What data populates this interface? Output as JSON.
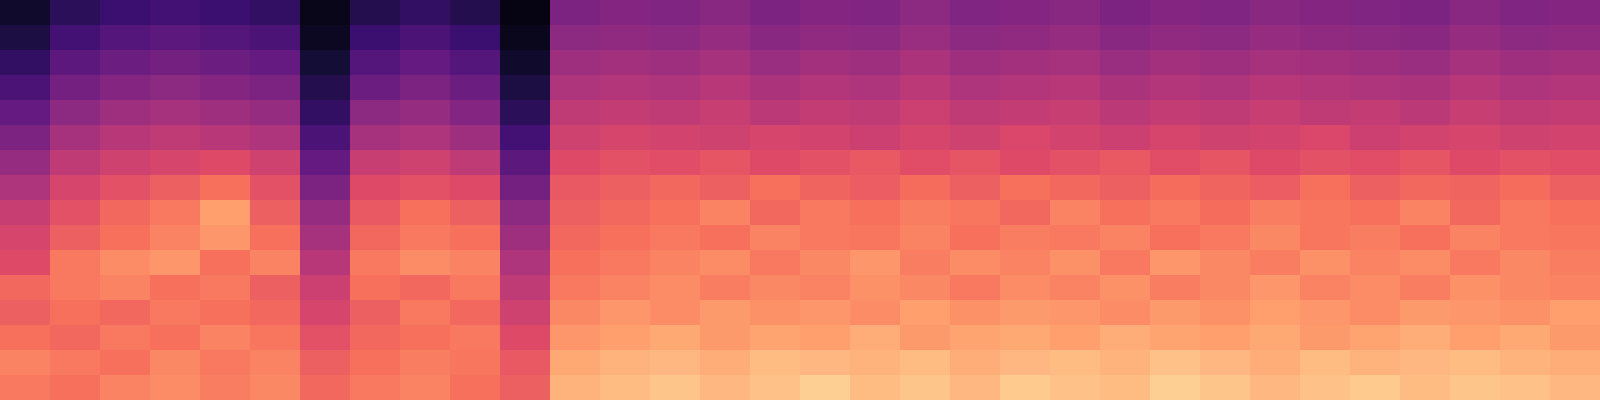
{
  "chart_data": {
    "type": "heatmap",
    "color": "magma",
    "tick_labels": false,
    "zlim": [
      0,
      100
    ],
    "cells": [
      [
        72,
        70,
        74,
        76,
        73,
        75,
        68,
        72,
        74,
        70,
        66,
        84,
        86,
        88,
        85,
        87,
        90,
        86,
        88,
        85,
        89,
        87,
        86,
        90,
        88,
        85,
        87,
        89,
        86,
        88,
        87,
        85
      ],
      [
        74,
        72,
        70,
        75,
        72,
        74,
        66,
        70,
        73,
        71,
        64,
        82,
        84,
        85,
        83,
        86,
        85,
        84,
        86,
        83,
        85,
        86,
        84,
        87,
        85,
        83,
        86,
        84,
        85,
        86,
        84,
        83
      ],
      [
        70,
        68,
        72,
        70,
        74,
        71,
        62,
        68,
        70,
        72,
        60,
        78,
        80,
        82,
        79,
        81,
        80,
        83,
        79,
        81,
        82,
        80,
        83,
        81,
        80,
        82,
        79,
        81,
        83,
        80,
        82,
        79
      ],
      [
        66,
        70,
        68,
        72,
        70,
        68,
        58,
        66,
        72,
        68,
        56,
        75,
        78,
        76,
        79,
        77,
        78,
        76,
        80,
        77,
        79,
        78,
        76,
        79,
        77,
        80,
        78,
        76,
        79,
        78,
        77,
        80
      ],
      [
        68,
        72,
        74,
        70,
        72,
        66,
        55,
        70,
        68,
        72,
        52,
        72,
        74,
        76,
        73,
        75,
        74,
        77,
        75,
        72,
        76,
        74,
        77,
        73,
        75,
        78,
        74,
        76,
        73,
        77,
        75,
        74
      ],
      [
        60,
        72,
        76,
        78,
        70,
        74,
        50,
        72,
        76,
        74,
        48,
        70,
        72,
        74,
        76,
        72,
        75,
        78,
        73,
        76,
        74,
        77,
        72,
        78,
        75,
        73,
        77,
        74,
        76,
        72,
        75,
        73
      ],
      [
        58,
        66,
        70,
        74,
        78,
        70,
        46,
        68,
        72,
        70,
        44,
        68,
        70,
        72,
        70,
        74,
        72,
        71,
        74,
        70,
        73,
        72,
        74,
        70,
        72,
        75,
        71,
        73,
        70,
        74,
        72,
        71
      ],
      [
        54,
        62,
        68,
        72,
        80,
        66,
        42,
        64,
        70,
        66,
        40,
        66,
        68,
        70,
        74,
        68,
        72,
        70,
        73,
        71,
        68,
        74,
        70,
        72,
        69,
        73,
        71,
        70,
        74,
        68,
        72,
        70
      ],
      [
        48,
        58,
        62,
        66,
        70,
        62,
        36,
        60,
        62,
        60,
        34,
        64,
        66,
        68,
        66,
        70,
        67,
        65,
        69,
        66,
        70,
        68,
        66,
        69,
        67,
        65,
        70,
        66,
        68,
        67,
        69,
        66
      ],
      [
        42,
        52,
        56,
        58,
        60,
        56,
        30,
        54,
        56,
        52,
        28,
        60,
        62,
        61,
        63,
        60,
        62,
        64,
        61,
        63,
        60,
        62,
        64,
        61,
        63,
        60,
        62,
        61,
        63,
        60,
        62,
        61
      ],
      [
        36,
        46,
        50,
        52,
        50,
        48,
        24,
        46,
        48,
        44,
        22,
        56,
        58,
        57,
        56,
        58,
        57,
        55,
        58,
        56,
        59,
        57,
        55,
        58,
        56,
        57,
        59,
        55,
        57,
        58,
        56,
        57
      ],
      [
        30,
        40,
        44,
        46,
        44,
        42,
        18,
        40,
        42,
        38,
        16,
        52,
        53,
        52,
        54,
        51,
        53,
        52,
        55,
        52,
        53,
        54,
        51,
        53,
        52,
        54,
        52,
        53,
        51,
        54,
        52,
        53
      ],
      [
        24,
        34,
        38,
        40,
        38,
        36,
        14,
        32,
        36,
        32,
        12,
        48,
        49,
        48,
        50,
        47,
        49,
        48,
        51,
        48,
        49,
        50,
        47,
        49,
        48,
        50,
        49,
        48,
        47,
        50,
        48,
        49
      ],
      [
        18,
        28,
        32,
        34,
        32,
        30,
        10,
        26,
        30,
        26,
        8,
        44,
        45,
        44,
        46,
        43,
        45,
        44,
        47,
        44,
        45,
        46,
        43,
        45,
        44,
        46,
        45,
        44,
        43,
        46,
        44,
        45
      ],
      [
        12,
        22,
        26,
        28,
        26,
        24,
        6,
        20,
        24,
        20,
        5,
        40,
        41,
        40,
        42,
        39,
        41,
        40,
        43,
        40,
        41,
        42,
        39,
        41,
        40,
        42,
        41,
        40,
        39,
        42,
        40,
        41
      ],
      [
        8,
        16,
        20,
        22,
        20,
        18,
        4,
        14,
        18,
        14,
        3,
        36,
        38,
        37,
        39,
        36,
        38,
        37,
        40,
        37,
        38,
        39,
        36,
        38,
        37,
        39,
        38,
        37,
        36,
        39,
        37,
        38
      ]
    ]
  }
}
